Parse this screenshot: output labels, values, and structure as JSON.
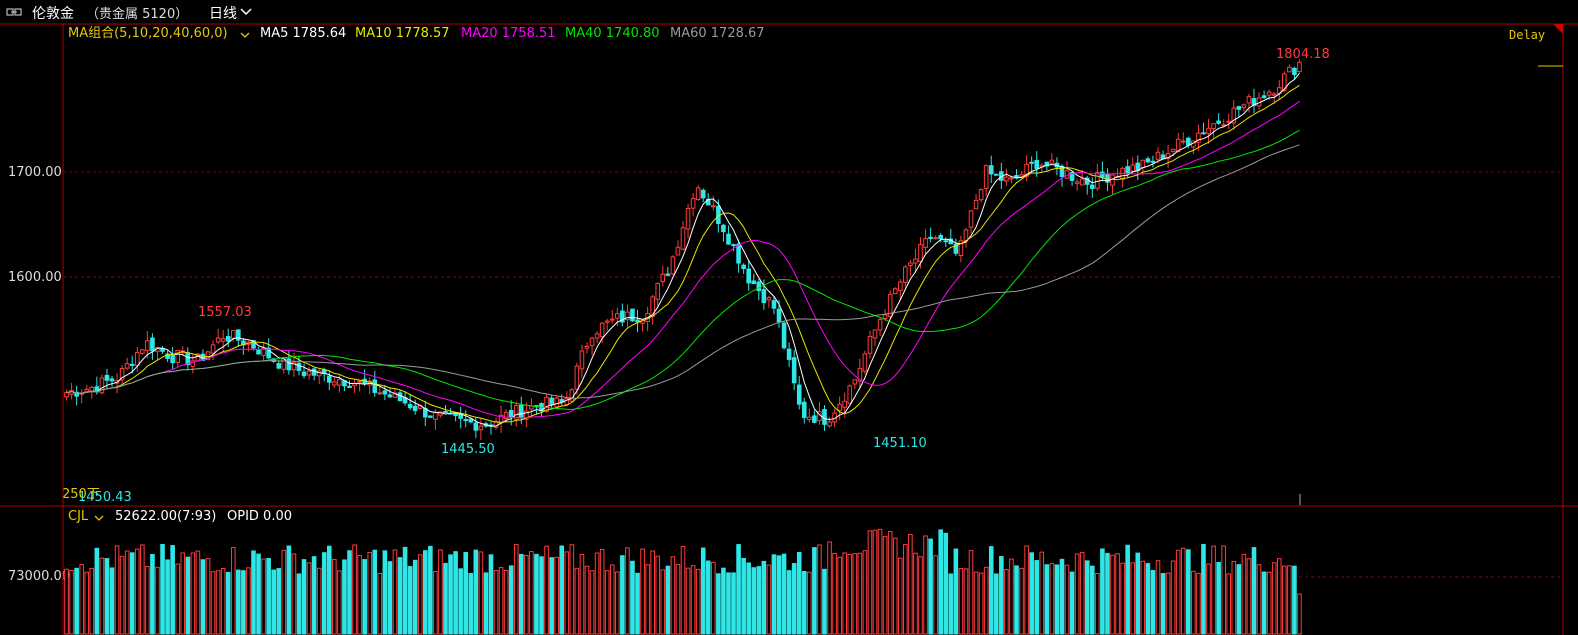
{
  "header": {
    "symbol": "伦敦金",
    "market": "（贵金属  5120）",
    "period": "日线",
    "period_icon": "chevron-down-icon",
    "link_icon": "link-icon"
  },
  "indicators": {
    "ma_group": "MA组合(5,10,20,40,60,0)",
    "ma5": "MA5 1785.64",
    "ma10": "MA10 1778.57",
    "ma20": "MA20 1758.51",
    "ma40": "MA40 1740.80",
    "ma60": "MA60 1728.67",
    "delay": "Delay"
  },
  "volume_panel": {
    "name": "CJL",
    "value": "52622.00(7:93)",
    "opid": "OPID 0.00",
    "tick": "73000.00"
  },
  "colors": {
    "up": "#ff3b3b",
    "down": "#2ee6e6",
    "ma5": "#ffffff",
    "ma10": "#e6e600",
    "ma20": "#ff00ff",
    "ma40": "#00e600",
    "ma60": "#9a9a9a",
    "frame": "#b00000",
    "grid": "#8a0000"
  },
  "chart_data": {
    "type": "candlestick",
    "price_axis": {
      "ticks": [
        1600.0,
        1700.0
      ],
      "tick_labels": [
        "1600.00",
        "1700.00"
      ]
    },
    "annotations": [
      {
        "label": "1557.03",
        "value": 1557.03,
        "kind": "high"
      },
      {
        "label": "1445.50",
        "value": 1445.5,
        "kind": "low"
      },
      {
        "label": "1451.10",
        "value": 1451.1,
        "kind": "low"
      },
      {
        "label": "1804.18",
        "value": 1804.18,
        "kind": "high"
      },
      {
        "label": "1450.43",
        "value": 1450.43,
        "kind": "low"
      }
    ],
    "overlay_label": "250下",
    "ma_last": {
      "MA5": 1785.64,
      "MA10": 1778.57,
      "MA20": 1758.51,
      "MA40": 1740.8,
      "MA60": 1728.67
    },
    "close_path": [
      1490,
      1495,
      1505,
      1538,
      1525,
      1520,
      1545,
      1537,
      1520,
      1510,
      1505,
      1500,
      1490,
      1480,
      1468,
      1462,
      1460,
      1470,
      1478,
      1480,
      1548,
      1560,
      1565,
      1610,
      1690,
      1650,
      1600,
      1570,
      1470,
      1465,
      1500,
      1560,
      1605,
      1640,
      1620,
      1700,
      1690,
      1710,
      1700,
      1690,
      1700,
      1705,
      1720,
      1735,
      1750,
      1765,
      1780,
      1804
    ],
    "volume_tick": 73000.0
  }
}
